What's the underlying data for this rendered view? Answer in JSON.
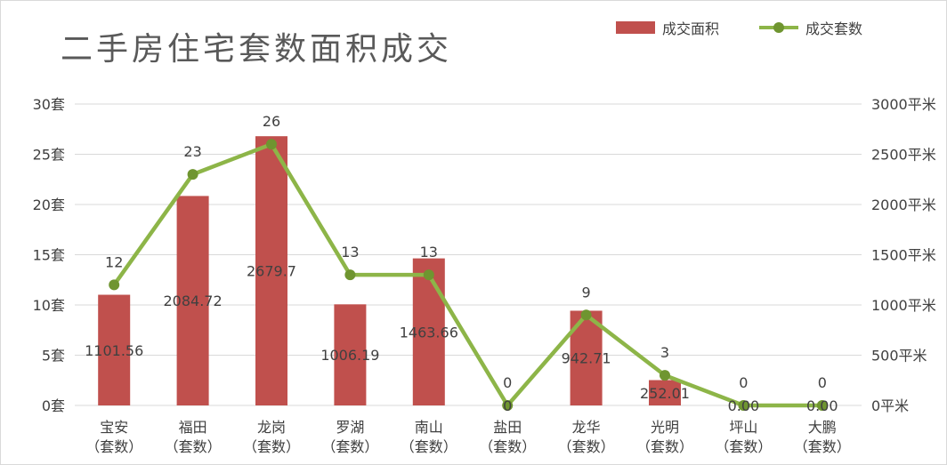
{
  "chart_data": {
    "type": "bar",
    "title": "二手房住宅套数面积成交",
    "categories": [
      "宝安",
      "福田",
      "龙岗",
      "罗湖",
      "南山",
      "盐田",
      "龙华",
      "光明",
      "坪山",
      "大鹏"
    ],
    "category_sublabel": "（套数）",
    "series": [
      {
        "name": "成交面积",
        "type": "bar",
        "axis": "right",
        "values": [
          1101.56,
          2084.72,
          2679.7,
          1006.19,
          1463.66,
          0,
          942.71,
          252.01,
          0,
          0
        ],
        "labels": [
          "1101.56",
          "2084.72",
          "2679.7",
          "1006.19",
          "1463.66",
          "0",
          "942.71",
          "252.01",
          "0.00",
          "0.00"
        ]
      },
      {
        "name": "成交套数",
        "type": "line",
        "axis": "left",
        "values": [
          12,
          23,
          26,
          13,
          13,
          0,
          9,
          3,
          0,
          0
        ],
        "labels": [
          "12",
          "23",
          "26",
          "13",
          "13",
          "0",
          "9",
          "3",
          "0",
          "0"
        ]
      }
    ],
    "y_left": {
      "min": 0,
      "max": 30,
      "step": 5,
      "unit": "套",
      "ticks": [
        "0套",
        "5套",
        "10套",
        "15套",
        "20套",
        "25套",
        "30套"
      ]
    },
    "y_right": {
      "min": 0,
      "max": 3000,
      "step": 500,
      "unit": "平米",
      "ticks": [
        "0平米",
        "500平米",
        "1000平米",
        "1500平米",
        "2000平米",
        "2500平米",
        "3000平米"
      ]
    },
    "grid": true,
    "legend": "top-right"
  },
  "colors": {
    "bar": "#c0504d",
    "line": "#8db548",
    "marker": "#6f9530",
    "grid": "#d9d9d9",
    "text": "#404040",
    "title": "#595959"
  }
}
